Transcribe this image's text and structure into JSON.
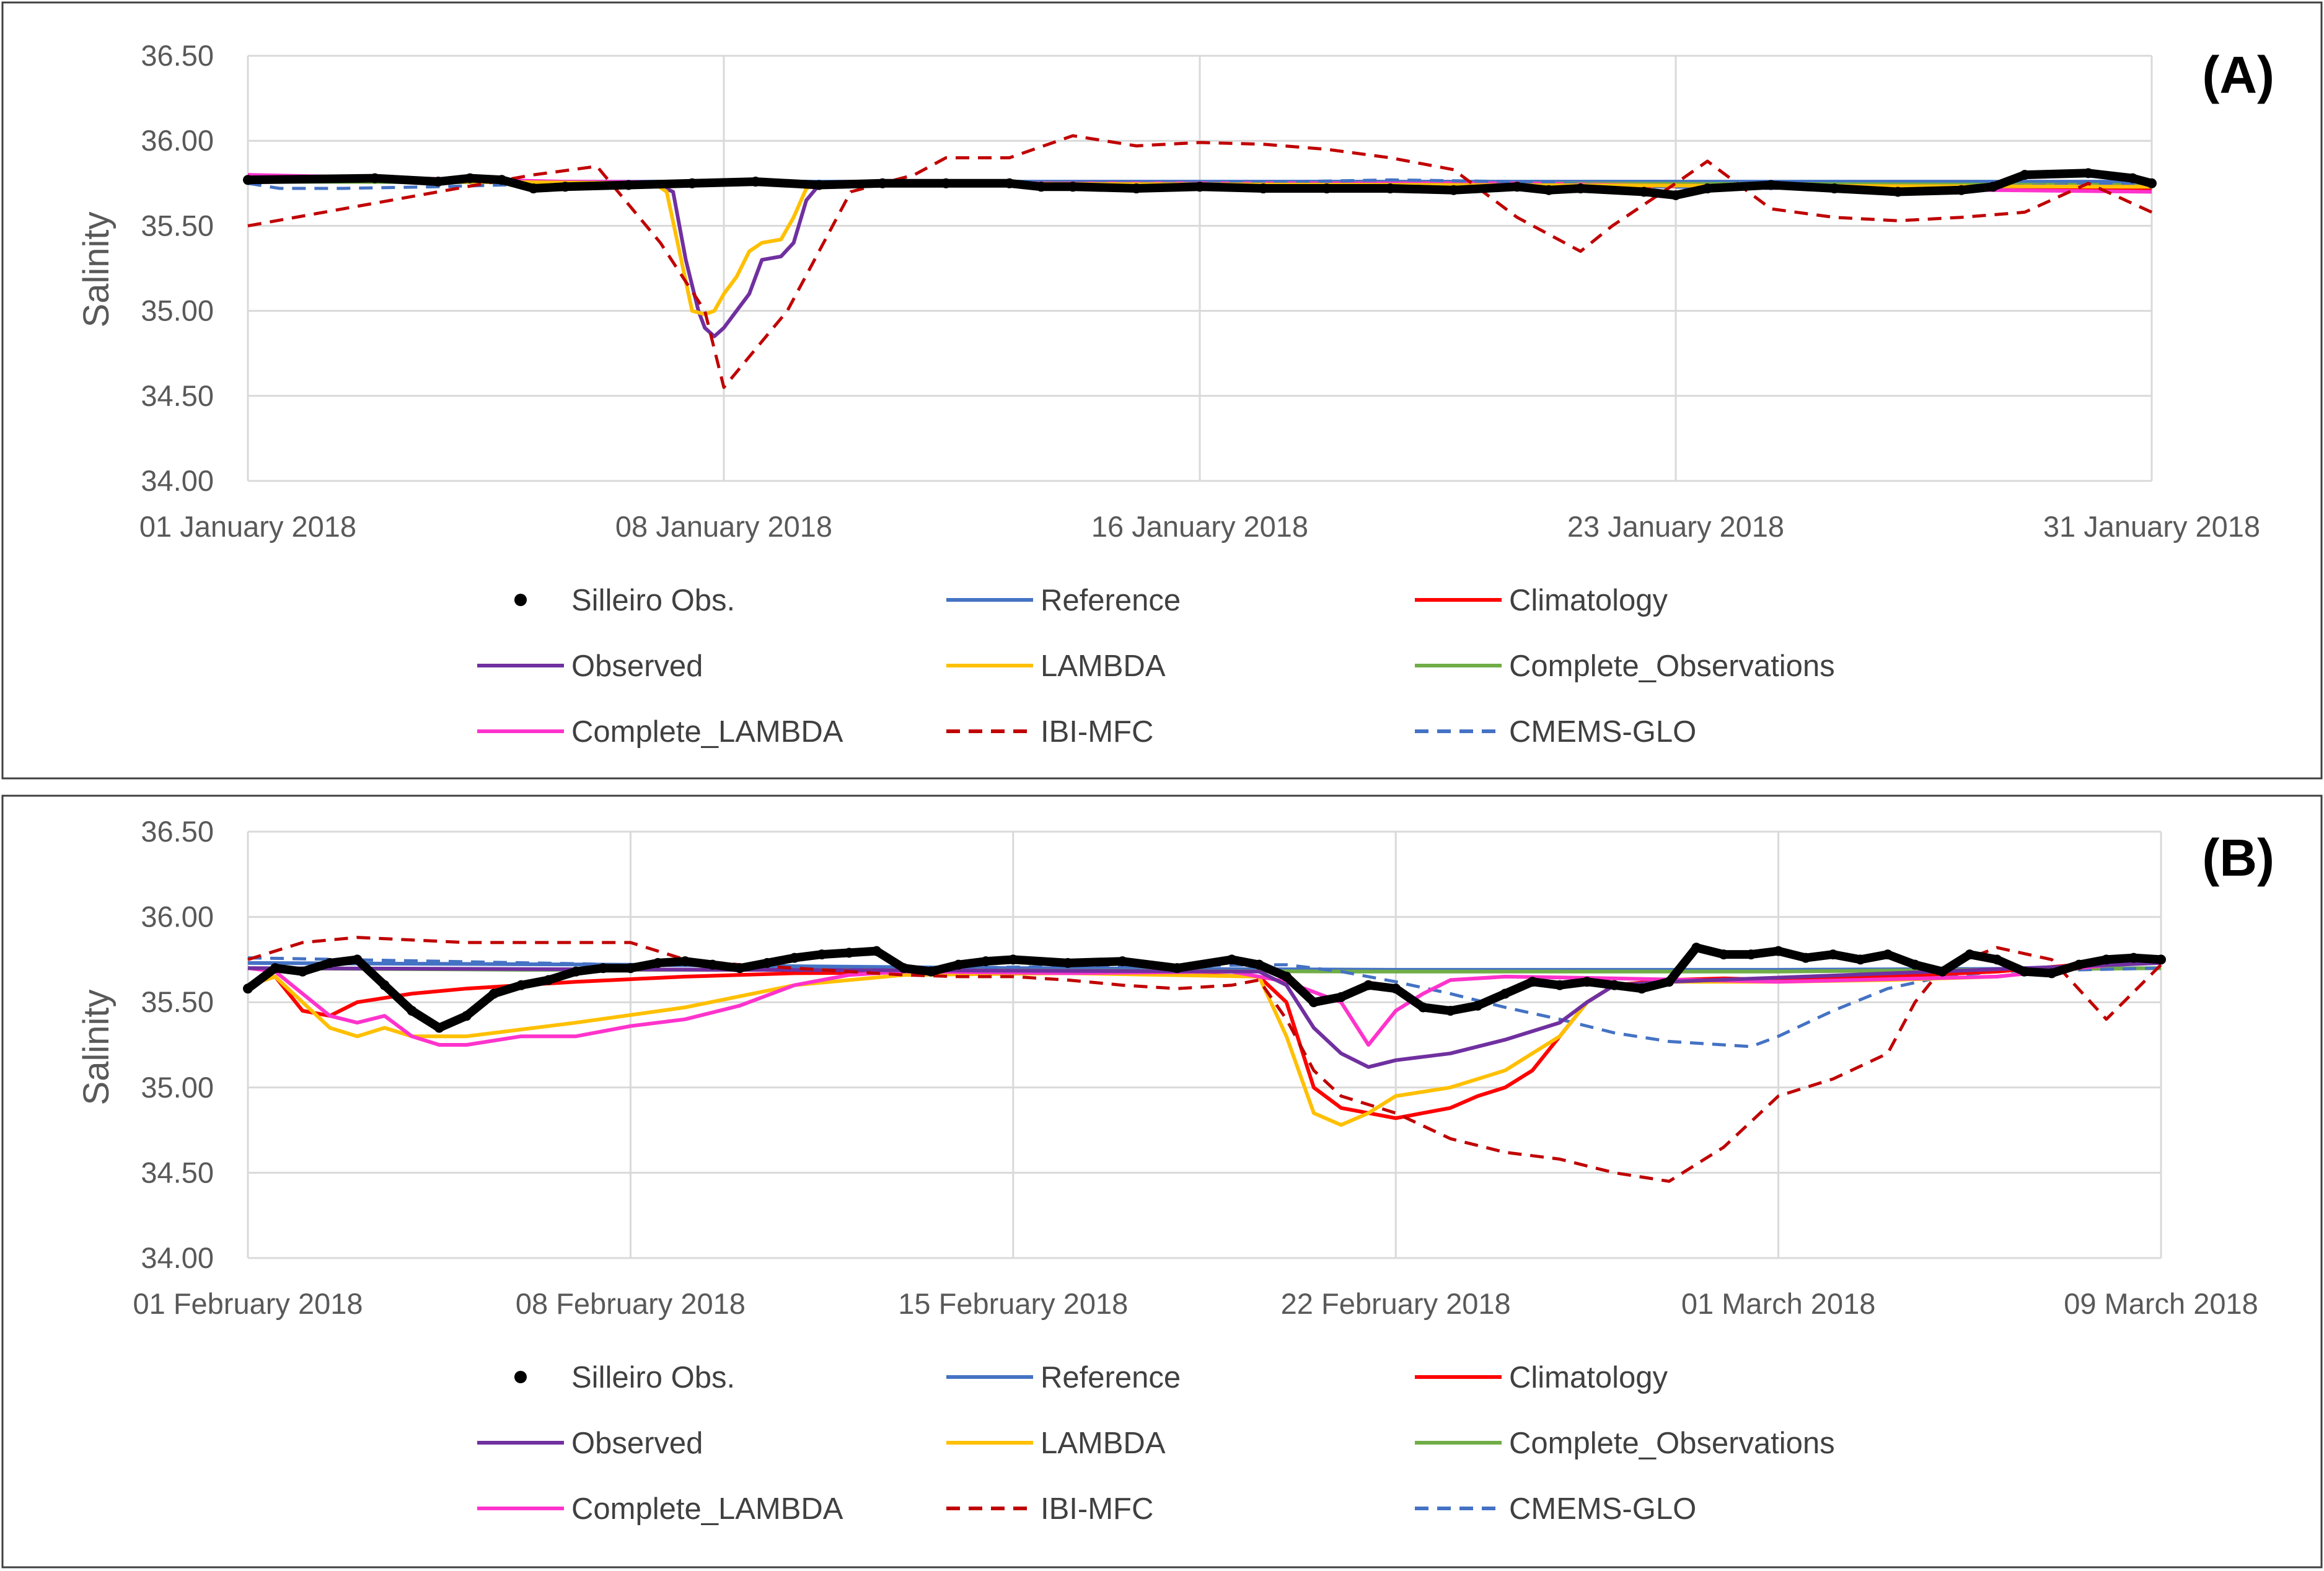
{
  "chart_data": [
    {
      "panel_label": "(A)",
      "type": "line",
      "ylabel": "Salinity",
      "ylim": [
        34.0,
        36.5
      ],
      "yticks": [
        "34.00",
        "34.50",
        "35.00",
        "35.50",
        "36.00",
        "36.50"
      ],
      "xlim": [
        0,
        30
      ],
      "xticks": [
        {
          "label": "01 January 2018",
          "value": 0
        },
        {
          "label": "08 January 2018",
          "value": 7.5
        },
        {
          "label": "16 January 2018",
          "value": 15
        },
        {
          "label": "23 January 2018",
          "value": 22.5
        },
        {
          "label": "31 January 2018",
          "value": 30
        }
      ],
      "series": [
        {
          "name": "Reference",
          "key": "reference",
          "color": "#4472C4",
          "dash": false,
          "x": [
            0,
            30
          ],
          "y": [
            35.76,
            35.76
          ]
        },
        {
          "name": "Climatology",
          "key": "climatology",
          "color": "#FF0000",
          "dash": false,
          "x": [
            0,
            4,
            7,
            12,
            18,
            24,
            30
          ],
          "y": [
            35.79,
            35.76,
            35.75,
            35.75,
            35.74,
            35.73,
            35.71
          ]
        },
        {
          "name": "Complete_Observations",
          "key": "complete_observations",
          "color": "#70AD47",
          "dash": false,
          "x": [
            0,
            10,
            20,
            30
          ],
          "y": [
            35.76,
            35.75,
            35.75,
            35.74
          ]
        },
        {
          "name": "Complete_LAMBDA",
          "key": "complete_lambda",
          "color": "#FF33CC",
          "dash": false,
          "x": [
            0,
            5,
            10,
            20,
            25,
            30
          ],
          "y": [
            35.8,
            35.76,
            35.75,
            35.75,
            35.72,
            35.7
          ]
        },
        {
          "name": "CMEMS-GLO",
          "key": "cmems_glo",
          "color": "#4472C4",
          "dash": true,
          "x": [
            0,
            0.5,
            1.5,
            3,
            5,
            8,
            12,
            15,
            18,
            20,
            22,
            24,
            27,
            30
          ],
          "y": [
            35.75,
            35.72,
            35.72,
            35.73,
            35.75,
            35.76,
            35.75,
            35.75,
            35.77,
            35.76,
            35.73,
            35.72,
            35.73,
            35.75
          ]
        },
        {
          "name": "Observed",
          "key": "observed",
          "color": "#7030A0",
          "dash": false,
          "x": [
            0,
            6.4,
            6.7,
            6.9,
            7.1,
            7.2,
            7.35,
            7.5,
            7.7,
            7.9,
            8.1,
            8.4,
            8.6,
            8.8,
            9.0,
            9.2,
            10,
            30
          ],
          "y": [
            35.77,
            35.75,
            35.7,
            35.3,
            35.0,
            34.9,
            34.85,
            34.9,
            35.0,
            35.1,
            35.3,
            35.32,
            35.4,
            35.65,
            35.74,
            35.75,
            35.75,
            35.73
          ]
        },
        {
          "name": "LAMBDA",
          "key": "lambda",
          "color": "#FFC000",
          "dash": false,
          "x": [
            0,
            6.4,
            6.6,
            6.8,
            7.0,
            7.2,
            7.35,
            7.5,
            7.7,
            7.9,
            8.1,
            8.4,
            8.6,
            8.8,
            9.0,
            30
          ],
          "y": [
            35.77,
            35.75,
            35.7,
            35.35,
            35.0,
            34.98,
            35.0,
            35.1,
            35.2,
            35.35,
            35.4,
            35.42,
            35.55,
            35.72,
            35.75,
            35.73
          ]
        },
        {
          "name": "IBI-MFC",
          "key": "ibi_mfc",
          "color": "#C00000",
          "dash": true,
          "x": [
            0,
            3,
            4.5,
            5.5,
            6.5,
            7.2,
            7.5,
            8.5,
            9.5,
            10.5,
            11,
            12,
            13,
            14,
            15,
            16,
            17,
            18,
            19,
            20,
            21,
            21.5,
            22.5,
            23,
            24,
            25,
            26,
            27,
            28,
            29,
            30
          ],
          "y": [
            35.5,
            35.7,
            35.8,
            35.85,
            35.4,
            35.0,
            34.55,
            35.0,
            35.7,
            35.8,
            35.9,
            35.9,
            36.03,
            35.97,
            35.99,
            35.98,
            35.95,
            35.9,
            35.83,
            35.55,
            35.35,
            35.5,
            35.75,
            35.88,
            35.6,
            35.55,
            35.53,
            35.55,
            35.58,
            35.75,
            35.58
          ]
        },
        {
          "name": "Silleiro Obs.",
          "key": "silleiro_obs",
          "color": "#000000",
          "dash": false,
          "markers": true,
          "x": [
            0,
            2,
            3,
            3.5,
            4,
            4.5,
            5,
            6,
            7,
            8,
            9,
            10,
            11,
            12,
            12.5,
            13,
            14,
            15,
            16,
            17,
            18,
            19,
            20,
            20.5,
            21,
            22,
            22.5,
            23,
            24,
            25,
            26,
            27,
            27.5,
            28,
            29,
            29.7,
            30
          ],
          "y": [
            35.77,
            35.78,
            35.76,
            35.78,
            35.77,
            35.72,
            35.73,
            35.74,
            35.75,
            35.76,
            35.74,
            35.75,
            35.75,
            35.75,
            35.73,
            35.73,
            35.72,
            35.73,
            35.72,
            35.72,
            35.72,
            35.71,
            35.73,
            35.71,
            35.72,
            35.7,
            35.68,
            35.72,
            35.74,
            35.72,
            35.7,
            35.71,
            35.73,
            35.8,
            35.81,
            35.78,
            35.75
          ]
        }
      ]
    },
    {
      "panel_label": "(B)",
      "type": "line",
      "ylabel": "Salinity",
      "ylim": [
        34.0,
        36.5
      ],
      "yticks": [
        "34.00",
        "34.50",
        "35.00",
        "35.50",
        "36.00",
        "36.50"
      ],
      "xlim": [
        0,
        35
      ],
      "xticks": [
        {
          "label": "01 February 2018",
          "value": 0
        },
        {
          "label": "08 February 2018",
          "value": 7
        },
        {
          "label": "15 February 2018",
          "value": 14
        },
        {
          "label": "22 February 2018",
          "value": 21
        },
        {
          "label": "01 March 2018",
          "value": 28
        },
        {
          "label": "09 March 2018",
          "value": 35
        }
      ],
      "series": [
        {
          "name": "Reference",
          "key": "reference",
          "color": "#4472C4",
          "dash": false,
          "x": [
            0,
            7,
            14,
            21,
            28,
            35
          ],
          "y": [
            35.73,
            35.72,
            35.7,
            35.69,
            35.69,
            35.7
          ]
        },
        {
          "name": "Complete_Observations",
          "key": "complete_observations",
          "color": "#70AD47",
          "dash": false,
          "x": [
            0,
            5,
            10,
            20,
            28,
            35
          ],
          "y": [
            35.7,
            35.69,
            35.69,
            35.68,
            35.68,
            35.7
          ]
        },
        {
          "name": "CMEMS-GLO",
          "key": "cmems_glo",
          "color": "#4472C4",
          "dash": true,
          "x": [
            0,
            7,
            12,
            19,
            20,
            21,
            22,
            23,
            24,
            25,
            26,
            27,
            27.5,
            28,
            29,
            30,
            31,
            32,
            35
          ],
          "y": [
            35.76,
            35.72,
            35.7,
            35.72,
            35.68,
            35.62,
            35.55,
            35.47,
            35.4,
            35.32,
            35.27,
            35.25,
            35.24,
            35.3,
            35.45,
            35.58,
            35.65,
            35.68,
            35.7
          ]
        },
        {
          "name": "Climatology",
          "key": "climatology",
          "color": "#FF0000",
          "dash": false,
          "x": [
            0,
            0.5,
            1,
            1.5,
            2,
            3,
            4,
            5,
            6,
            8,
            10,
            15,
            18.5,
            19,
            19.5,
            20,
            20.5,
            21,
            22,
            22.5,
            23,
            23.5,
            24,
            24.5,
            25,
            26,
            27,
            28,
            30,
            32,
            35
          ],
          "y": [
            35.6,
            35.65,
            35.45,
            35.42,
            35.5,
            35.55,
            35.58,
            35.6,
            35.62,
            35.65,
            35.67,
            35.68,
            35.65,
            35.5,
            35.0,
            34.88,
            34.85,
            34.82,
            34.88,
            34.95,
            35.0,
            35.1,
            35.3,
            35.5,
            35.6,
            35.63,
            35.64,
            35.63,
            35.65,
            35.68,
            35.76
          ]
        },
        {
          "name": "LAMBDA",
          "key": "lambda",
          "color": "#FFC000",
          "dash": false,
          "x": [
            0,
            0.5,
            1,
            1.5,
            2,
            2.5,
            3,
            4,
            6,
            8,
            10,
            12,
            15,
            18.5,
            19,
            19.5,
            20,
            20.5,
            21,
            22,
            23,
            24,
            24.5,
            25,
            26,
            28,
            30,
            32,
            35
          ],
          "y": [
            35.6,
            35.65,
            35.5,
            35.35,
            35.3,
            35.35,
            35.3,
            35.3,
            35.38,
            35.47,
            35.6,
            35.66,
            35.67,
            35.65,
            35.3,
            34.85,
            34.78,
            34.85,
            34.95,
            35.0,
            35.1,
            35.3,
            35.5,
            35.6,
            35.62,
            35.62,
            35.63,
            35.65,
            35.75
          ]
        },
        {
          "name": "Complete_LAMBDA",
          "key": "complete_lambda",
          "color": "#FF33CC",
          "dash": false,
          "x": [
            0,
            0.5,
            1,
            1.5,
            2,
            2.5,
            3,
            3.5,
            4,
            5,
            6,
            7,
            8,
            9,
            10,
            11,
            12,
            15,
            18,
            19,
            20,
            20.5,
            21,
            21.5,
            22,
            23,
            25,
            28,
            32,
            35
          ],
          "y": [
            35.7,
            35.68,
            35.55,
            35.42,
            35.38,
            35.42,
            35.3,
            35.25,
            35.25,
            35.3,
            35.3,
            35.36,
            35.4,
            35.48,
            35.6,
            35.66,
            35.68,
            35.67,
            35.68,
            35.62,
            35.5,
            35.25,
            35.45,
            35.55,
            35.63,
            35.65,
            35.64,
            35.62,
            35.65,
            35.75
          ]
        },
        {
          "name": "Observed",
          "key": "observed",
          "color": "#7030A0",
          "dash": false,
          "x": [
            0,
            18.5,
            19,
            19.5,
            20,
            20.5,
            21,
            21.5,
            22,
            23,
            24,
            24.5,
            25,
            26,
            35
          ],
          "y": [
            35.7,
            35.68,
            35.6,
            35.35,
            35.2,
            35.12,
            35.16,
            35.18,
            35.2,
            35.28,
            35.38,
            35.5,
            35.6,
            35.62,
            35.73
          ]
        },
        {
          "name": "IBI-MFC",
          "key": "ibi_mfc",
          "color": "#C00000",
          "dash": true,
          "x": [
            0,
            1,
            2,
            4,
            6,
            7,
            8,
            9,
            10,
            11,
            12,
            13,
            14,
            15,
            16,
            17,
            18,
            18.5,
            19,
            19.5,
            20,
            21,
            22,
            23,
            24,
            25,
            26,
            27,
            28,
            29,
            30,
            30.5,
            31,
            32,
            33,
            34,
            35
          ],
          "y": [
            35.75,
            35.85,
            35.88,
            35.85,
            35.85,
            35.85,
            35.75,
            35.72,
            35.7,
            35.68,
            35.66,
            35.65,
            35.65,
            35.63,
            35.6,
            35.58,
            35.6,
            35.63,
            35.4,
            35.1,
            34.95,
            34.85,
            34.7,
            34.62,
            34.58,
            34.5,
            34.45,
            34.65,
            34.95,
            35.05,
            35.2,
            35.5,
            35.7,
            35.82,
            35.75,
            35.4,
            35.72
          ]
        },
        {
          "name": "Silleiro Obs.",
          "key": "silleiro_obs",
          "color": "#000000",
          "dash": false,
          "markers": true,
          "x": [
            0,
            0.5,
            1,
            1.5,
            2,
            2.5,
            3,
            3.5,
            4,
            4.5,
            5,
            5.5,
            6,
            6.5,
            7,
            7.5,
            8,
            8.5,
            9,
            9.5,
            10,
            10.5,
            11,
            11.5,
            12,
            12.5,
            13,
            13.5,
            14,
            15,
            16,
            17,
            18,
            18.5,
            19,
            19.5,
            20,
            20.5,
            21,
            21.5,
            22,
            22.5,
            23,
            23.5,
            24,
            24.5,
            25,
            25.5,
            26,
            26.5,
            27,
            27.5,
            28,
            28.5,
            29,
            29.5,
            30,
            30.5,
            31,
            31.5,
            32,
            32.5,
            33,
            33.5,
            34,
            34.5,
            35
          ],
          "y": [
            35.58,
            35.7,
            35.68,
            35.73,
            35.75,
            35.6,
            35.45,
            35.35,
            35.42,
            35.55,
            35.6,
            35.63,
            35.68,
            35.7,
            35.7,
            35.73,
            35.74,
            35.72,
            35.7,
            35.73,
            35.76,
            35.78,
            35.79,
            35.8,
            35.7,
            35.68,
            35.72,
            35.74,
            35.75,
            35.73,
            35.74,
            35.7,
            35.75,
            35.72,
            35.65,
            35.5,
            35.53,
            35.6,
            35.58,
            35.47,
            35.45,
            35.48,
            35.55,
            35.62,
            35.6,
            35.62,
            35.6,
            35.58,
            35.62,
            35.82,
            35.78,
            35.78,
            35.8,
            35.76,
            35.78,
            35.75,
            35.78,
            35.72,
            35.68,
            35.78,
            35.75,
            35.68,
            35.67,
            35.72,
            35.75,
            35.76,
            35.75
          ]
        }
      ]
    }
  ],
  "legend": [
    {
      "label": "Silleiro Obs.",
      "key": "silleiro_obs",
      "color": "#000000",
      "style": "marker"
    },
    {
      "label": "Reference",
      "key": "reference",
      "color": "#4472C4",
      "style": "solid"
    },
    {
      "label": "Climatology",
      "key": "climatology",
      "color": "#FF0000",
      "style": "solid"
    },
    {
      "label": "Observed",
      "key": "observed",
      "color": "#7030A0",
      "style": "solid"
    },
    {
      "label": "LAMBDA",
      "key": "lambda",
      "color": "#FFC000",
      "style": "solid"
    },
    {
      "label": "Complete_Observations",
      "key": "complete_observations",
      "color": "#70AD47",
      "style": "solid"
    },
    {
      "label": "Complete_LAMBDA",
      "key": "complete_lambda",
      "color": "#FF33CC",
      "style": "solid"
    },
    {
      "label": "IBI-MFC",
      "key": "ibi_mfc",
      "color": "#C00000",
      "style": "dashed"
    },
    {
      "label": "CMEMS-GLO",
      "key": "cmems_glo",
      "color": "#4472C4",
      "style": "dashed"
    }
  ]
}
